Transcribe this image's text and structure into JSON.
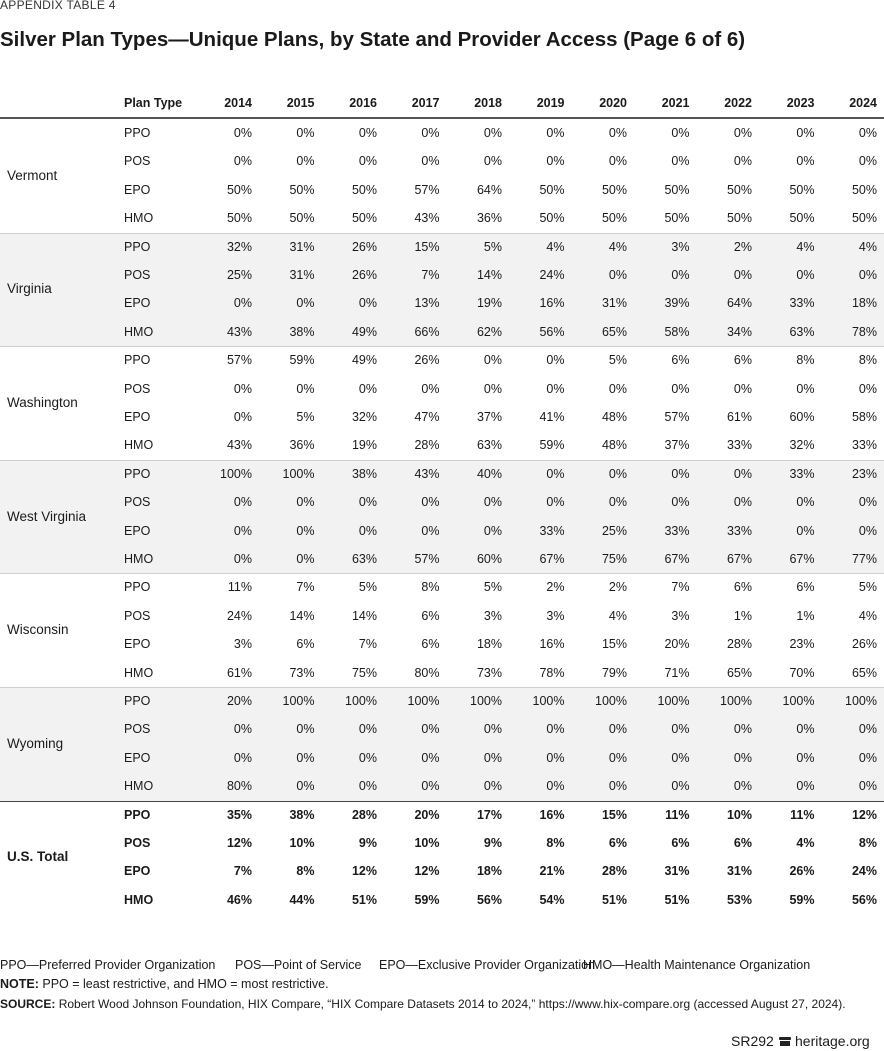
{
  "header": {
    "label": "APPENDIX TABLE 4",
    "title": "Silver Plan Types—Unique Plans, by State and Provider Access (Page 6 of 6)"
  },
  "table": {
    "columns": [
      "Plan Type",
      "2014",
      "2015",
      "2016",
      "2017",
      "2018",
      "2019",
      "2020",
      "2021",
      "2022",
      "2023",
      "2024"
    ],
    "groups": [
      {
        "state": "Vermont",
        "rows": [
          [
            "PPO",
            "0%",
            "0%",
            "0%",
            "0%",
            "0%",
            "0%",
            "0%",
            "0%",
            "0%",
            "0%",
            "0%"
          ],
          [
            "POS",
            "0%",
            "0%",
            "0%",
            "0%",
            "0%",
            "0%",
            "0%",
            "0%",
            "0%",
            "0%",
            "0%"
          ],
          [
            "EPO",
            "50%",
            "50%",
            "50%",
            "57%",
            "64%",
            "50%",
            "50%",
            "50%",
            "50%",
            "50%",
            "50%"
          ],
          [
            "HMO",
            "50%",
            "50%",
            "50%",
            "43%",
            "36%",
            "50%",
            "50%",
            "50%",
            "50%",
            "50%",
            "50%"
          ]
        ]
      },
      {
        "state": "Virginia",
        "rows": [
          [
            "PPO",
            "32%",
            "31%",
            "26%",
            "15%",
            "5%",
            "4%",
            "4%",
            "3%",
            "2%",
            "4%",
            "4%"
          ],
          [
            "POS",
            "25%",
            "31%",
            "26%",
            "7%",
            "14%",
            "24%",
            "0%",
            "0%",
            "0%",
            "0%",
            "0%"
          ],
          [
            "EPO",
            "0%",
            "0%",
            "0%",
            "13%",
            "19%",
            "16%",
            "31%",
            "39%",
            "64%",
            "33%",
            "18%"
          ],
          [
            "HMO",
            "43%",
            "38%",
            "49%",
            "66%",
            "62%",
            "56%",
            "65%",
            "58%",
            "34%",
            "63%",
            "78%"
          ]
        ]
      },
      {
        "state": "Washington",
        "rows": [
          [
            "PPO",
            "57%",
            "59%",
            "49%",
            "26%",
            "0%",
            "0%",
            "5%",
            "6%",
            "6%",
            "8%",
            "8%"
          ],
          [
            "POS",
            "0%",
            "0%",
            "0%",
            "0%",
            "0%",
            "0%",
            "0%",
            "0%",
            "0%",
            "0%",
            "0%"
          ],
          [
            "EPO",
            "0%",
            "5%",
            "32%",
            "47%",
            "37%",
            "41%",
            "48%",
            "57%",
            "61%",
            "60%",
            "58%"
          ],
          [
            "HMO",
            "43%",
            "36%",
            "19%",
            "28%",
            "63%",
            "59%",
            "48%",
            "37%",
            "33%",
            "32%",
            "33%"
          ]
        ]
      },
      {
        "state": "West Virginia",
        "rows": [
          [
            "PPO",
            "100%",
            "100%",
            "38%",
            "43%",
            "40%",
            "0%",
            "0%",
            "0%",
            "0%",
            "33%",
            "23%"
          ],
          [
            "POS",
            "0%",
            "0%",
            "0%",
            "0%",
            "0%",
            "0%",
            "0%",
            "0%",
            "0%",
            "0%",
            "0%"
          ],
          [
            "EPO",
            "0%",
            "0%",
            "0%",
            "0%",
            "0%",
            "33%",
            "25%",
            "33%",
            "33%",
            "0%",
            "0%"
          ],
          [
            "HMO",
            "0%",
            "0%",
            "63%",
            "57%",
            "60%",
            "67%",
            "75%",
            "67%",
            "67%",
            "67%",
            "77%"
          ]
        ]
      },
      {
        "state": "Wisconsin",
        "rows": [
          [
            "PPO",
            "11%",
            "7%",
            "5%",
            "8%",
            "5%",
            "2%",
            "2%",
            "7%",
            "6%",
            "6%",
            "5%"
          ],
          [
            "POS",
            "24%",
            "14%",
            "14%",
            "6%",
            "3%",
            "3%",
            "4%",
            "3%",
            "1%",
            "1%",
            "4%"
          ],
          [
            "EPO",
            "3%",
            "6%",
            "7%",
            "6%",
            "18%",
            "16%",
            "15%",
            "20%",
            "28%",
            "23%",
            "26%"
          ],
          [
            "HMO",
            "61%",
            "73%",
            "75%",
            "80%",
            "73%",
            "78%",
            "79%",
            "71%",
            "65%",
            "70%",
            "65%"
          ]
        ]
      },
      {
        "state": "Wyoming",
        "rows": [
          [
            "PPO",
            "20%",
            "100%",
            "100%",
            "100%",
            "100%",
            "100%",
            "100%",
            "100%",
            "100%",
            "100%",
            "100%"
          ],
          [
            "POS",
            "0%",
            "0%",
            "0%",
            "0%",
            "0%",
            "0%",
            "0%",
            "0%",
            "0%",
            "0%",
            "0%"
          ],
          [
            "EPO",
            "0%",
            "0%",
            "0%",
            "0%",
            "0%",
            "0%",
            "0%",
            "0%",
            "0%",
            "0%",
            "0%"
          ],
          [
            "HMO",
            "80%",
            "0%",
            "0%",
            "0%",
            "0%",
            "0%",
            "0%",
            "0%",
            "0%",
            "0%",
            "0%"
          ]
        ]
      }
    ],
    "total": {
      "state": "U.S. Total",
      "rows": [
        [
          "PPO",
          "35%",
          "38%",
          "28%",
          "20%",
          "17%",
          "16%",
          "15%",
          "11%",
          "10%",
          "11%",
          "12%"
        ],
        [
          "POS",
          "12%",
          "10%",
          "9%",
          "10%",
          "9%",
          "8%",
          "6%",
          "6%",
          "6%",
          "4%",
          "8%"
        ],
        [
          "EPO",
          "7%",
          "8%",
          "12%",
          "12%",
          "18%",
          "21%",
          "28%",
          "31%",
          "31%",
          "26%",
          "24%"
        ],
        [
          "HMO",
          "46%",
          "44%",
          "51%",
          "59%",
          "56%",
          "54%",
          "51%",
          "51%",
          "53%",
          "59%",
          "56%"
        ]
      ]
    }
  },
  "footer": {
    "abbreviations": [
      "PPO—Preferred Provider Organization",
      "POS—Point of Service",
      "EPO—Exclusive Provider Organization",
      "HMO—Health Maintenance Organization"
    ],
    "note_label": "NOTE:",
    "note": "PPO = least restrictive, and HMO = most restrictive.",
    "source_label": "SOURCE:",
    "source": "Robert Wood Johnson Foundation, HIX Compare, “HIX Compare Datasets 2014 to 2024,” https://www.hix-compare.org (accessed August 27, 2024).",
    "report": "SR292",
    "site": "heritage.org"
  }
}
